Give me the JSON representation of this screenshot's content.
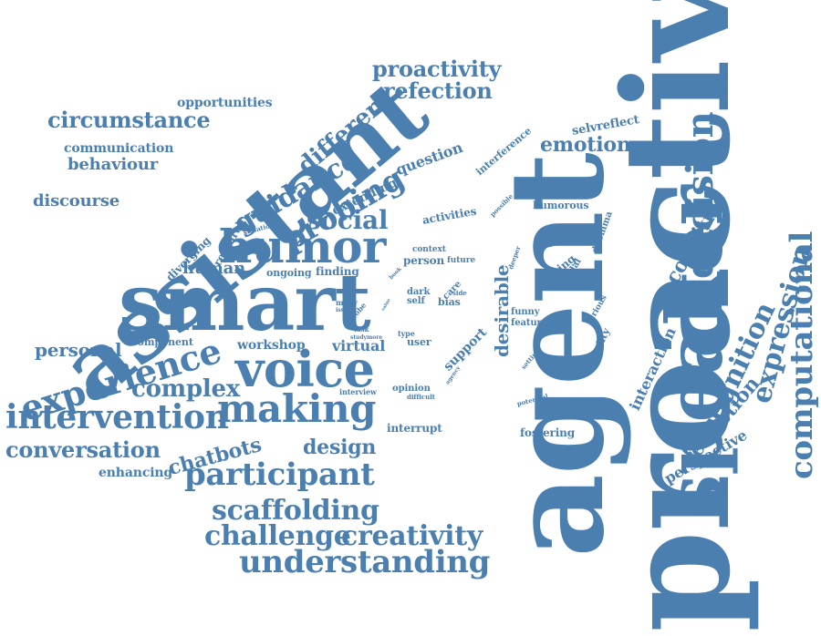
{
  "color": "#4a7fb0",
  "words": [
    "proactive",
    "agent",
    "speaker",
    "assistant",
    "smart",
    "humor",
    "voice",
    "decision",
    "making",
    "experience",
    "intervention",
    "computational",
    "participant",
    "understanding",
    "expression",
    "cognition",
    "cognitive",
    "scaffolding",
    "challenge",
    "creativity",
    "conversation",
    "proactivity",
    "refection",
    "circumstance",
    "guidance",
    "probing",
    "social",
    "different",
    "emotion",
    "complex",
    "personal",
    "design",
    "chatbots",
    "reflection",
    "interaction",
    "perspective",
    "desirable",
    "human",
    "discourse",
    "communication",
    "behaviour",
    "opportunities",
    "question",
    "virtual",
    "enhancing",
    "workshop",
    "fostering",
    "support",
    "extending",
    "research",
    "diverging",
    "interrupt",
    "component",
    "selvreflect",
    "interference",
    "implication",
    "humorous",
    "activities",
    "dilemma",
    "guided",
    "opening",
    "modal",
    "person",
    "context",
    "future",
    "finding",
    "ongoing",
    "dark",
    "self",
    "care",
    "bias",
    "side",
    "probe",
    "many",
    "issue",
    "funny",
    "feature",
    "reality",
    "serious",
    "user",
    "type",
    "opinion",
    "difficult",
    "interview",
    "setting",
    "potential",
    "agency",
    "situation",
    "possible",
    "deeper",
    "book",
    "study",
    "task",
    "more",
    "value"
  ]
}
